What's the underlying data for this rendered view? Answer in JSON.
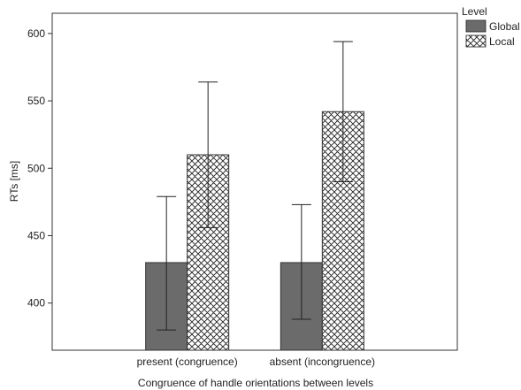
{
  "chart_data": {
    "type": "bar",
    "title": "",
    "xlabel": "Congruence of handle orientations between levels",
    "ylabel": "RTs [ms]",
    "categories": [
      "present (congruence)",
      "absent (incongruence)"
    ],
    "ylim": [
      365,
      615
    ],
    "yticks": [
      400,
      450,
      500,
      550,
      600
    ],
    "grid": false,
    "legend": {
      "title": "Level",
      "placement": "top-right"
    },
    "series": [
      {
        "name": "Global",
        "values": [
          430,
          430
        ],
        "err_low": [
          380,
          388
        ],
        "err_high": [
          479,
          473
        ],
        "fill": "#6b6b6b",
        "pattern": "solid"
      },
      {
        "name": "Local",
        "values": [
          510,
          542
        ],
        "err_low": [
          456,
          490
        ],
        "err_high": [
          564,
          594
        ],
        "fill": "#ffffff",
        "pattern": "crosshatch"
      }
    ],
    "colors": {
      "global": "#6b6b6b",
      "axis": "#333333"
    }
  }
}
